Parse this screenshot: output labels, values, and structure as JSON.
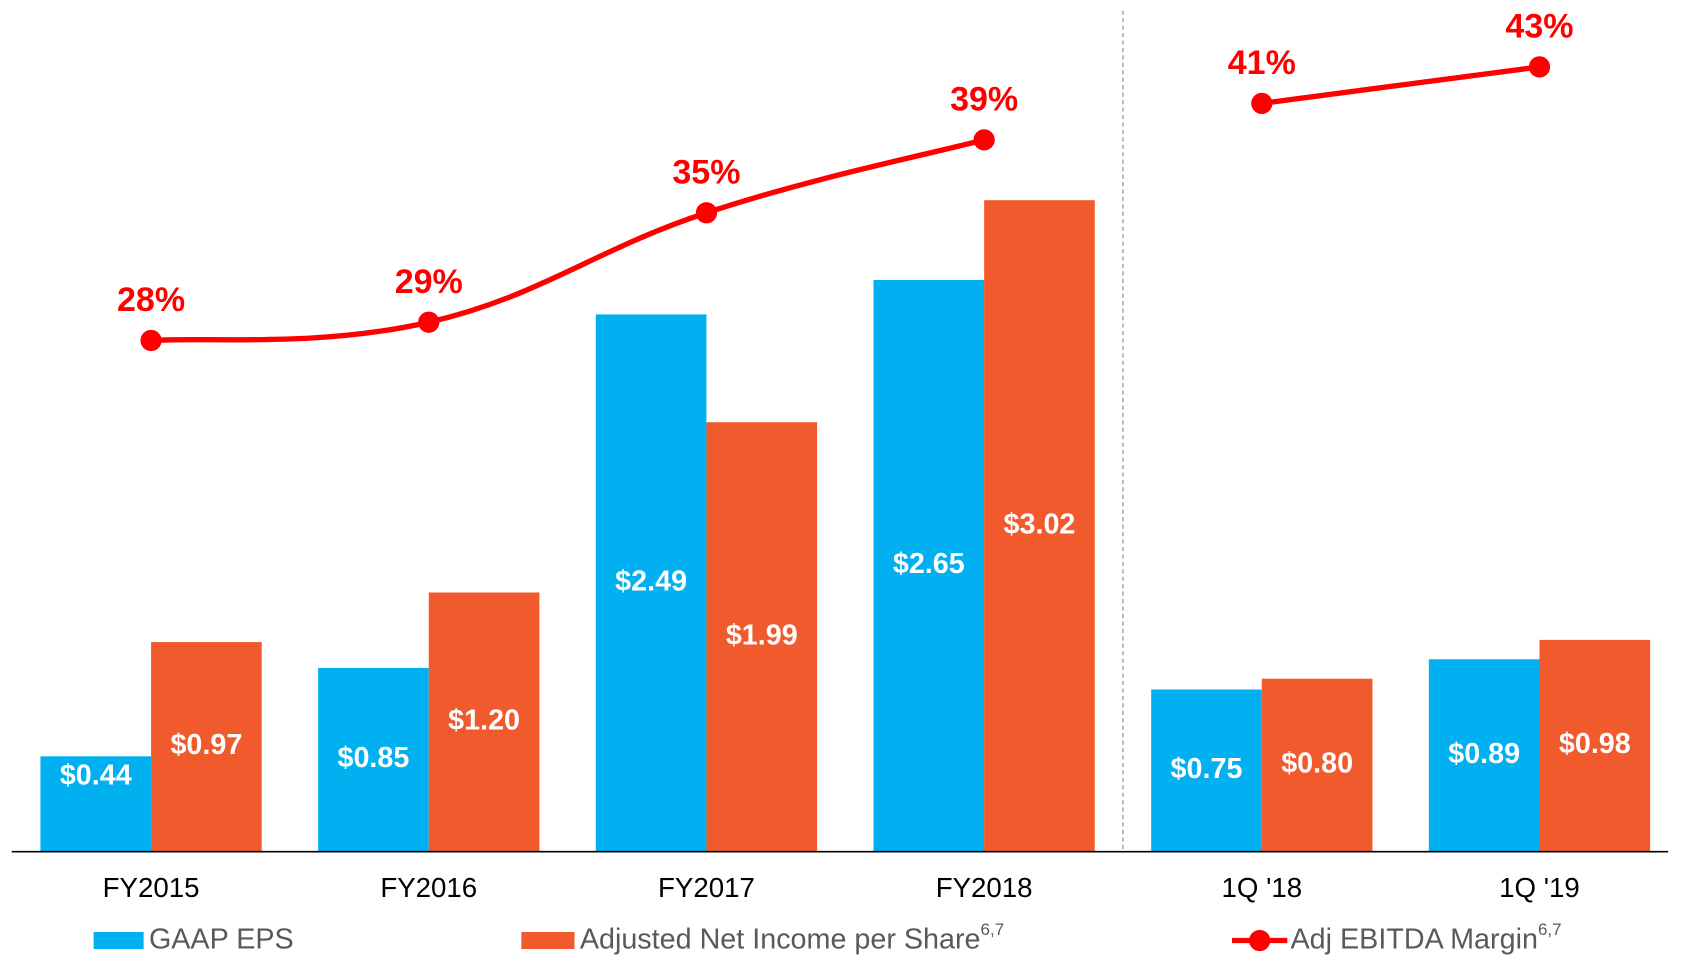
{
  "chart_data": {
    "type": "bar",
    "categories": [
      "FY2015",
      "FY2016",
      "FY2017",
      "FY2018",
      "1Q '18",
      "1Q '19"
    ],
    "divider_after": 4,
    "ylim": [
      0,
      3.85
    ],
    "y2lim": [
      0,
      45.5
    ],
    "series": [
      {
        "name": "GAAP EPS",
        "color": "#00b0f0",
        "type": "bar",
        "values": [
          0.44,
          0.85,
          2.49,
          2.65,
          0.75,
          0.89
        ],
        "value_labels": [
          "$0.44",
          "$0.85",
          "$2.49",
          "$2.65",
          "$0.75",
          "$0.89"
        ]
      },
      {
        "name": "Adjusted Net Income per Share",
        "name_superscript": "6,7",
        "color": "#f05a2d",
        "type": "bar",
        "values": [
          0.97,
          1.2,
          1.99,
          3.02,
          0.8,
          0.98
        ],
        "value_labels": [
          "$0.97",
          "$1.20",
          "$1.99",
          "$3.02",
          "$0.80",
          "$0.98"
        ]
      },
      {
        "name": "Adj EBITDA Margin",
        "name_superscript": "6,7",
        "color": "#ff0000",
        "type": "line",
        "axis": "y2",
        "values": [
          28,
          29,
          35,
          39,
          41,
          43
        ],
        "value_labels": [
          "28%",
          "29%",
          "35%",
          "39%",
          "41%",
          "43%"
        ]
      }
    ]
  }
}
